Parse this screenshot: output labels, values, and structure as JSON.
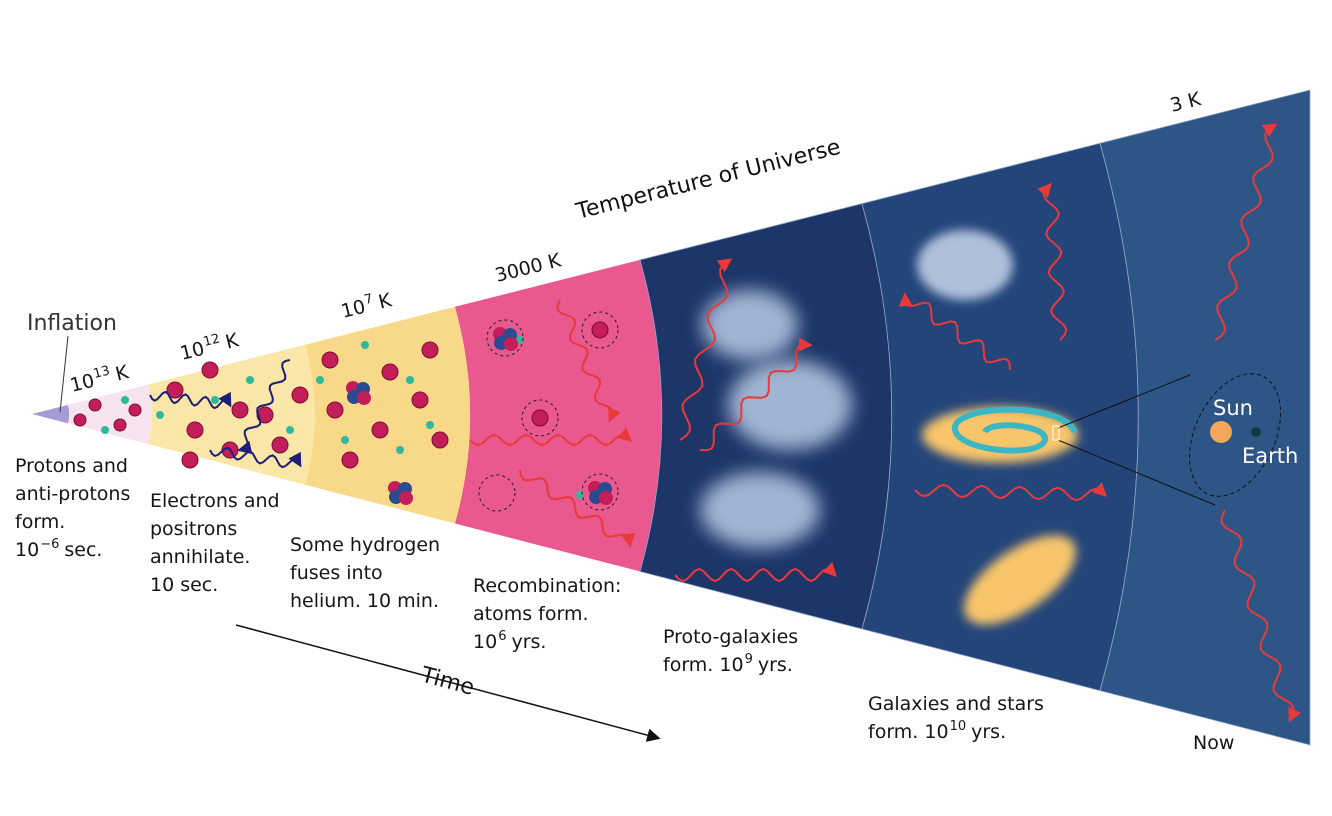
{
  "title": "Temperature of Universe",
  "inflation": "Inflation",
  "time": "Time",
  "temperatures": [
    {
      "pre": "10",
      "sup": "13",
      "post": "K"
    },
    {
      "pre": "10",
      "sup": "12",
      "post": "K"
    },
    {
      "pre": "10",
      "sup": "7",
      "post": "K"
    },
    "3000 K",
    "3 K"
  ],
  "stages": [
    {
      "lines": [
        "Protons and",
        "anti-protons",
        "form.",
        {
          "pre": "10",
          "sup": "−6",
          "post": "sec."
        }
      ]
    },
    {
      "lines": [
        "Electrons and",
        "positrons",
        "annihilate.",
        "10 sec."
      ]
    },
    {
      "lines": [
        "Some hydrogen",
        "fuses into",
        "helium. 10 min."
      ]
    },
    {
      "lines": [
        "Recombination:",
        "atoms form.",
        {
          "pre": "10",
          "sup": "6",
          "post": "yrs."
        }
      ]
    },
    {
      "lines": [
        "Proto-galaxies",
        {
          "pre": "form. 10",
          "sup": "9",
          "post": "yrs."
        }
      ]
    },
    {
      "lines": [
        "Galaxies and stars",
        {
          "pre": "form. 10",
          "sup": "10",
          "post": "yrs."
        }
      ]
    },
    {
      "lines": [
        "Now"
      ]
    }
  ],
  "sun": "Sun",
  "earth": "Earth"
}
